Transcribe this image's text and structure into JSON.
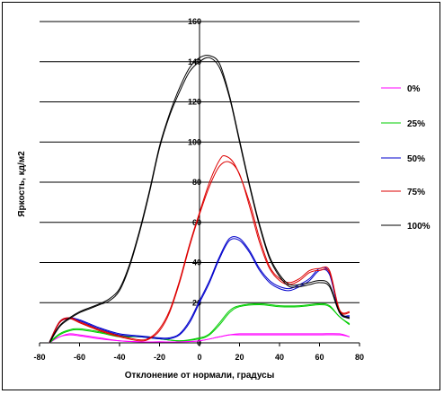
{
  "chart_data": {
    "type": "line",
    "xlabel": "Отклонение от нормали, градусы",
    "ylabel": "Яркость, кд/м2",
    "xlim": [
      -80,
      80
    ],
    "ylim": [
      0,
      160
    ],
    "x_ticks": [
      "-80",
      "-60",
      "-40",
      "-20",
      "0",
      "20",
      "40",
      "60",
      "80"
    ],
    "y_ticks": [
      "0",
      "20",
      "40",
      "60",
      "80",
      "100",
      "120",
      "140",
      "160"
    ],
    "grid": "horizontal",
    "legend_position": "right",
    "series": [
      {
        "name": "0%",
        "color": "#ff00ff",
        "curves": [
          [
            [
              -75,
              0
            ],
            [
              -70,
              3
            ],
            [
              -65,
              4
            ],
            [
              -60,
              3.5
            ],
            [
              -50,
              2
            ],
            [
              -40,
              1
            ],
            [
              -30,
              0.5
            ],
            [
              -20,
              0.5
            ],
            [
              -10,
              0.5
            ],
            [
              0,
              1
            ],
            [
              10,
              3
            ],
            [
              15,
              4
            ],
            [
              20,
              4
            ],
            [
              30,
              4
            ],
            [
              40,
              4
            ],
            [
              50,
              4
            ],
            [
              60,
              4
            ],
            [
              70,
              4
            ],
            [
              75,
              3
            ]
          ],
          [
            [
              -75,
              0.5
            ],
            [
              -70,
              3
            ],
            [
              -65,
              4.5
            ],
            [
              -60,
              4
            ],
            [
              -50,
              2.5
            ],
            [
              -40,
              1
            ],
            [
              -30,
              0.5
            ],
            [
              -20,
              0.5
            ],
            [
              -10,
              0.5
            ],
            [
              0,
              1
            ],
            [
              10,
              3
            ],
            [
              15,
              4
            ],
            [
              20,
              4.5
            ],
            [
              30,
              4.5
            ],
            [
              40,
              4.5
            ],
            [
              50,
              4.5
            ],
            [
              60,
              4.5
            ],
            [
              70,
              4.5
            ],
            [
              75,
              3
            ]
          ]
        ]
      },
      {
        "name": "25%",
        "color": "#00cc00",
        "curves": [
          [
            [
              -75,
              0
            ],
            [
              -70,
              4
            ],
            [
              -65,
              6
            ],
            [
              -60,
              6.5
            ],
            [
              -50,
              5
            ],
            [
              -40,
              3
            ],
            [
              -30,
              3
            ],
            [
              -20,
              2
            ],
            [
              -10,
              1
            ],
            [
              0,
              2
            ],
            [
              5,
              4
            ],
            [
              10,
              9
            ],
            [
              15,
              15
            ],
            [
              20,
              18
            ],
            [
              30,
              19
            ],
            [
              40,
              18
            ],
            [
              50,
              18
            ],
            [
              60,
              19
            ],
            [
              65,
              18
            ],
            [
              70,
              13
            ],
            [
              75,
              9
            ]
          ],
          [
            [
              -75,
              0.5
            ],
            [
              -70,
              4.5
            ],
            [
              -65,
              6.5
            ],
            [
              -60,
              7
            ],
            [
              -50,
              5.5
            ],
            [
              -40,
              3.5
            ],
            [
              -30,
              3
            ],
            [
              -20,
              2
            ],
            [
              -10,
              1
            ],
            [
              0,
              2.5
            ],
            [
              5,
              4.5
            ],
            [
              10,
              10
            ],
            [
              15,
              16
            ],
            [
              20,
              18.5
            ],
            [
              30,
              19.5
            ],
            [
              40,
              18.5
            ],
            [
              50,
              18.5
            ],
            [
              60,
              19.5
            ],
            [
              65,
              18.5
            ],
            [
              70,
              13
            ],
            [
              75,
              9.5
            ]
          ]
        ]
      },
      {
        "name": "50%",
        "color": "#0000cc",
        "curves": [
          [
            [
              -75,
              0
            ],
            [
              -70,
              10
            ],
            [
              -65,
              12
            ],
            [
              -60,
              11
            ],
            [
              -55,
              9
            ],
            [
              -50,
              7
            ],
            [
              -40,
              4
            ],
            [
              -30,
              3
            ],
            [
              -20,
              2
            ],
            [
              -15,
              2
            ],
            [
              -10,
              4
            ],
            [
              -5,
              10
            ],
            [
              0,
              20
            ],
            [
              5,
              30
            ],
            [
              10,
              42
            ],
            [
              15,
              51
            ],
            [
              20,
              51
            ],
            [
              25,
              45
            ],
            [
              30,
              36
            ],
            [
              35,
              30
            ],
            [
              40,
              27
            ],
            [
              45,
              26
            ],
            [
              50,
              28
            ],
            [
              55,
              31
            ],
            [
              60,
              36
            ],
            [
              65,
              34
            ],
            [
              70,
              15
            ],
            [
              75,
              13
            ]
          ],
          [
            [
              -75,
              0.5
            ],
            [
              -70,
              10.5
            ],
            [
              -65,
              12.5
            ],
            [
              -60,
              11.5
            ],
            [
              -55,
              9.5
            ],
            [
              -50,
              7.5
            ],
            [
              -40,
              4.5
            ],
            [
              -30,
              3.5
            ],
            [
              -20,
              2.5
            ],
            [
              -15,
              2.5
            ],
            [
              -10,
              4.5
            ],
            [
              -5,
              11
            ],
            [
              0,
              21
            ],
            [
              5,
              31
            ],
            [
              10,
              43
            ],
            [
              15,
              52
            ],
            [
              20,
              52
            ],
            [
              25,
              46
            ],
            [
              30,
              37
            ],
            [
              35,
              31
            ],
            [
              40,
              28
            ],
            [
              45,
              27
            ],
            [
              50,
              29
            ],
            [
              55,
              32
            ],
            [
              60,
              37
            ],
            [
              65,
              35
            ],
            [
              70,
              15.5
            ],
            [
              75,
              13.5
            ]
          ]
        ]
      },
      {
        "name": "75%",
        "color": "#dd0000",
        "curves": [
          [
            [
              -75,
              0
            ],
            [
              -70,
              10
            ],
            [
              -65,
              12
            ],
            [
              -60,
              10
            ],
            [
              -55,
              8
            ],
            [
              -50,
              6
            ],
            [
              -40,
              3
            ],
            [
              -30,
              1
            ],
            [
              -25,
              2
            ],
            [
              -20,
              6
            ],
            [
              -15,
              15
            ],
            [
              -10,
              30
            ],
            [
              -5,
              48
            ],
            [
              0,
              64
            ],
            [
              5,
              78
            ],
            [
              10,
              88
            ],
            [
              15,
              90
            ],
            [
              20,
              84
            ],
            [
              25,
              68
            ],
            [
              30,
              50
            ],
            [
              35,
              37
            ],
            [
              40,
              31
            ],
            [
              45,
              29
            ],
            [
              50,
              31
            ],
            [
              55,
              35
            ],
            [
              60,
              36
            ],
            [
              65,
              35
            ],
            [
              70,
              16
            ],
            [
              75,
              15
            ]
          ],
          [
            [
              -75,
              0.5
            ],
            [
              -70,
              10.5
            ],
            [
              -65,
              12.5
            ],
            [
              -60,
              10.5
            ],
            [
              -55,
              8.5
            ],
            [
              -50,
              6.5
            ],
            [
              -40,
              3.5
            ],
            [
              -30,
              1.5
            ],
            [
              -25,
              2.5
            ],
            [
              -20,
              7
            ],
            [
              -15,
              16
            ],
            [
              -10,
              31
            ],
            [
              -5,
              49
            ],
            [
              0,
              65
            ],
            [
              5,
              80
            ],
            [
              10,
              91
            ],
            [
              13,
              93
            ],
            [
              18,
              88
            ],
            [
              25,
              70
            ],
            [
              30,
              52
            ],
            [
              35,
              38
            ],
            [
              40,
              32
            ],
            [
              45,
              30
            ],
            [
              50,
              32
            ],
            [
              55,
              36
            ],
            [
              60,
              37
            ],
            [
              65,
              36
            ],
            [
              70,
              16.5
            ],
            [
              75,
              15.5
            ]
          ]
        ]
      },
      {
        "name": "100%",
        "color": "#000000",
        "curves": [
          [
            [
              -75,
              0
            ],
            [
              -70,
              8
            ],
            [
              -65,
              12
            ],
            [
              -60,
              15
            ],
            [
              -55,
              17
            ],
            [
              -50,
              19
            ],
            [
              -45,
              21
            ],
            [
              -40,
              26
            ],
            [
              -35,
              38
            ],
            [
              -30,
              55
            ],
            [
              -25,
              75
            ],
            [
              -20,
              97
            ],
            [
              -15,
              113
            ],
            [
              -10,
              125
            ],
            [
              -5,
              135
            ],
            [
              0,
              140
            ],
            [
              5,
              142
            ],
            [
              10,
              137
            ],
            [
              15,
              122
            ],
            [
              20,
              100
            ],
            [
              25,
              78
            ],
            [
              30,
              58
            ],
            [
              35,
              42
            ],
            [
              40,
              33
            ],
            [
              45,
              28
            ],
            [
              50,
              28
            ],
            [
              55,
              29
            ],
            [
              60,
              30
            ],
            [
              65,
              28
            ],
            [
              70,
              15
            ],
            [
              75,
              12
            ]
          ],
          [
            [
              -75,
              0.5
            ],
            [
              -70,
              8.5
            ],
            [
              -65,
              12.5
            ],
            [
              -60,
              15.5
            ],
            [
              -55,
              17.5
            ],
            [
              -50,
              19.5
            ],
            [
              -45,
              22
            ],
            [
              -40,
              27
            ],
            [
              -35,
              39
            ],
            [
              -30,
              56
            ],
            [
              -25,
              76
            ],
            [
              -20,
              98
            ],
            [
              -15,
              114
            ],
            [
              -10,
              127
            ],
            [
              -5,
              137
            ],
            [
              0,
              142
            ],
            [
              5,
              143
            ],
            [
              10,
              139
            ],
            [
              15,
              123
            ],
            [
              20,
              101
            ],
            [
              25,
              79
            ],
            [
              30,
              59
            ],
            [
              35,
              43
            ],
            [
              40,
              34
            ],
            [
              45,
              29
            ],
            [
              50,
              29
            ],
            [
              55,
              30
            ],
            [
              60,
              31
            ],
            [
              65,
              29
            ],
            [
              70,
              15.5
            ],
            [
              75,
              12.5
            ]
          ]
        ]
      }
    ]
  }
}
